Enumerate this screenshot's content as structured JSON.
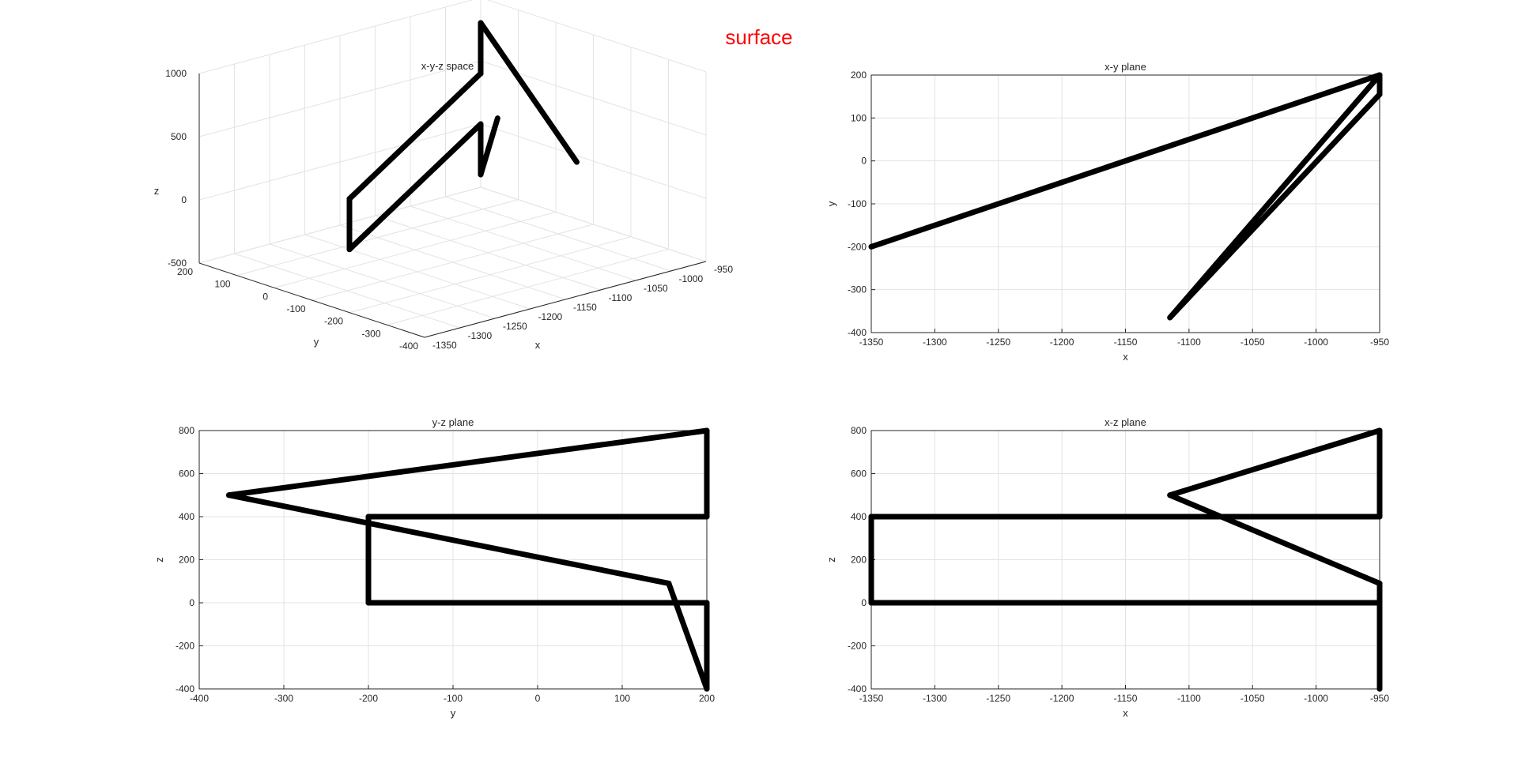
{
  "figure": {
    "title": "surface",
    "title_color": "#ff0000"
  },
  "chart_data": [
    {
      "type": "line",
      "projection": "3d",
      "title": "x-y-z space",
      "xlabel": "x",
      "ylabel": "y",
      "zlabel": "z",
      "xlim": [
        -1350,
        -950
      ],
      "ylim": [
        -400,
        200
      ],
      "zlim": [
        -500,
        1000
      ],
      "x_ticks": [
        -1350,
        -1300,
        -1250,
        -1200,
        -1150,
        -1100,
        -1050,
        -1000,
        -950
      ],
      "y_ticks": [
        -400,
        -300,
        -200,
        -100,
        0,
        100,
        200
      ],
      "z_ticks": [
        -500,
        0,
        500,
        1000
      ],
      "grid": true,
      "line_color": "#000000",
      "series": [
        {
          "x": [
            -1115,
            -950,
            -950,
            -950,
            -950,
            -1350,
            -1350,
            -1350,
            -1350,
            -950,
            -950,
            -950
          ],
          "y": [
            -365,
            200,
            200,
            200,
            200,
            -200,
            -200,
            -200,
            -200,
            200,
            200,
            155
          ],
          "z": [
            500,
            800,
            400,
            400,
            400,
            400,
            400,
            0,
            0,
            0,
            -400,
            90
          ]
        }
      ]
    },
    {
      "type": "line",
      "title": "x-y plane",
      "xlabel": "x",
      "ylabel": "y",
      "xlim": [
        -1350,
        -950
      ],
      "ylim": [
        -400,
        200
      ],
      "x_ticks": [
        -1350,
        -1300,
        -1250,
        -1200,
        -1150,
        -1100,
        -1050,
        -1000,
        -950
      ],
      "y_ticks": [
        -400,
        -300,
        -200,
        -100,
        0,
        100,
        200
      ],
      "grid": true,
      "line_color": "#000000",
      "series": [
        {
          "x": [
            -1350,
            -950,
            -950,
            -1115,
            -950
          ],
          "y": [
            -200,
            200,
            155,
            -365,
            200
          ]
        }
      ]
    },
    {
      "type": "line",
      "title": "y-z plane",
      "xlabel": "y",
      "ylabel": "z",
      "xlim": [
        -400,
        200
      ],
      "ylim": [
        -400,
        800
      ],
      "x_ticks": [
        -400,
        -300,
        -200,
        -100,
        0,
        100,
        200
      ],
      "y_ticks": [
        -400,
        -200,
        0,
        200,
        400,
        600,
        800
      ],
      "grid": true,
      "line_color": "#000000",
      "series": [
        {
          "x": [
            -365,
            200,
            200,
            -200,
            -200,
            200,
            200,
            155,
            -365
          ],
          "y": [
            500,
            800,
            400,
            400,
            0,
            0,
            -400,
            90,
            500
          ]
        }
      ]
    },
    {
      "type": "line",
      "title": "x-z plane",
      "xlabel": "x",
      "ylabel": "z",
      "xlim": [
        -1350,
        -950
      ],
      "ylim": [
        -400,
        800
      ],
      "x_ticks": [
        -1350,
        -1300,
        -1250,
        -1200,
        -1150,
        -1100,
        -1050,
        -1000,
        -950
      ],
      "y_ticks": [
        -400,
        -200,
        0,
        200,
        400,
        600,
        800
      ],
      "grid": true,
      "line_color": "#000000",
      "series": [
        {
          "x": [
            -1115,
            -950,
            -950,
            -1350,
            -1350,
            -950,
            -950,
            -950,
            -1115
          ],
          "y": [
            500,
            800,
            400,
            400,
            0,
            0,
            -400,
            90,
            500
          ]
        }
      ]
    }
  ]
}
